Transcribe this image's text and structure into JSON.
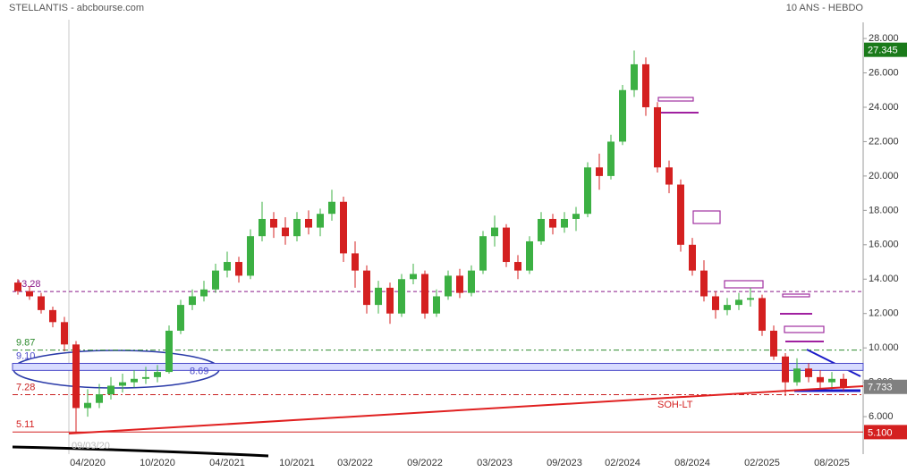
{
  "chart_data": {
    "type": "candlestick",
    "title": "STELLANTIS - abcbourse.com",
    "subtitle": "10 ANS - HEBDO",
    "x": [
      "10/2019",
      "11/2019",
      "12/2019",
      "01/2020",
      "02/2020",
      "03/2020",
      "04/2020",
      "05/2020",
      "06/2020",
      "07/2020",
      "08/2020",
      "09/2020",
      "10/2020",
      "11/2020",
      "12/2020",
      "01/2021",
      "02/2021",
      "03/2021",
      "04/2021",
      "05/2021",
      "06/2021",
      "07/2021",
      "08/2021",
      "09/2021",
      "10/2021",
      "11/2021",
      "12/2021",
      "01/2022",
      "02/2022",
      "03/2022",
      "04/2022",
      "05/2022",
      "06/2022",
      "07/2022",
      "08/2022",
      "09/2022",
      "10/2022",
      "11/2022",
      "12/2022",
      "01/2023",
      "02/2023",
      "03/2023",
      "04/2023",
      "05/2023",
      "06/2023",
      "07/2023",
      "08/2023",
      "09/2023",
      "10/2023",
      "11/2023",
      "12/2023",
      "01/2024",
      "02/2024",
      "03/2024",
      "04/2024",
      "05/2024",
      "06/2024",
      "07/2024",
      "08/2024",
      "09/2024",
      "10/2024",
      "11/2024",
      "12/2024",
      "01/2025",
      "02/2025",
      "03/2025",
      "04/2025",
      "05/2025",
      "06/2025",
      "07/2025",
      "08/2025",
      "09/2025"
    ],
    "open": [
      13.8,
      13.3,
      13.0,
      12.2,
      11.5,
      10.2,
      6.5,
      6.8,
      7.3,
      7.8,
      8.0,
      8.2,
      8.3,
      8.6,
      11.0,
      12.5,
      13.0,
      13.4,
      14.5,
      15.0,
      14.2,
      16.5,
      17.5,
      17.0,
      16.5,
      17.5,
      17.0,
      17.8,
      18.5,
      15.5,
      14.5,
      12.5,
      13.5,
      12.0,
      14.0,
      14.3,
      12.0,
      13.0,
      14.2,
      13.2,
      14.5,
      16.5,
      17.0,
      15.0,
      14.5,
      16.2,
      17.5,
      17.0,
      17.5,
      17.8,
      20.5,
      20.0,
      22.0,
      25.0,
      26.5,
      24.0,
      20.5,
      19.5,
      16.0,
      14.5,
      13.0,
      12.2,
      12.5,
      12.8,
      12.9,
      11.0,
      9.5,
      8.0,
      8.8,
      8.3,
      8.0,
      8.2
    ],
    "high": [
      14.0,
      13.6,
      13.2,
      12.4,
      11.8,
      10.4,
      7.6,
      7.9,
      8.3,
      8.5,
      8.7,
      8.9,
      9.0,
      11.3,
      12.8,
      13.4,
      13.9,
      14.9,
      15.6,
      15.3,
      16.9,
      18.5,
      17.9,
      17.6,
      17.9,
      18.0,
      18.1,
      19.2,
      18.8,
      16.2,
      14.8,
      13.9,
      13.8,
      14.3,
      14.9,
      14.5,
      13.4,
      14.5,
      14.6,
      14.8,
      16.8,
      17.7,
      17.2,
      15.4,
      16.5,
      17.9,
      17.8,
      17.9,
      18.2,
      20.8,
      21.3,
      22.4,
      25.3,
      27.3,
      26.9,
      24.3,
      20.9,
      19.8,
      16.4,
      15.1,
      13.3,
      12.9,
      13.2,
      13.5,
      13.1,
      11.3,
      9.7,
      9.4,
      9.1,
      8.7,
      8.6,
      8.5
    ],
    "low": [
      13.1,
      12.8,
      12.0,
      11.2,
      9.8,
      5.1,
      6.0,
      6.5,
      7.0,
      7.4,
      7.7,
      7.9,
      8.0,
      8.5,
      10.8,
      12.2,
      12.7,
      13.2,
      14.1,
      13.8,
      14.0,
      16.2,
      16.4,
      16.0,
      16.2,
      16.6,
      16.5,
      17.4,
      15.0,
      13.5,
      12.0,
      12.0,
      11.4,
      11.8,
      13.7,
      11.7,
      11.8,
      12.8,
      12.9,
      13.0,
      14.3,
      15.9,
      14.7,
      14.0,
      14.3,
      16.0,
      16.6,
      16.7,
      16.8,
      17.6,
      19.2,
      19.8,
      21.8,
      24.6,
      23.5,
      20.2,
      19.0,
      15.6,
      14.2,
      12.7,
      11.7,
      11.9,
      12.2,
      12.4,
      10.7,
      9.3,
      7.2,
      7.8,
      8.0,
      7.6,
      7.6,
      7.5
    ],
    "close": [
      13.3,
      13.0,
      12.2,
      11.5,
      10.2,
      6.5,
      6.8,
      7.3,
      7.8,
      8.0,
      8.2,
      8.3,
      8.6,
      11.0,
      12.5,
      13.0,
      13.4,
      14.5,
      15.0,
      14.2,
      16.5,
      17.5,
      17.0,
      16.5,
      17.5,
      17.0,
      17.8,
      18.5,
      15.5,
      14.5,
      12.5,
      13.5,
      12.0,
      14.0,
      14.3,
      12.0,
      13.0,
      14.2,
      13.2,
      14.5,
      16.5,
      17.0,
      15.0,
      14.5,
      16.2,
      17.5,
      17.0,
      17.5,
      17.8,
      20.5,
      20.0,
      22.0,
      25.0,
      26.5,
      24.0,
      20.5,
      19.5,
      16.0,
      14.5,
      13.0,
      12.2,
      12.5,
      12.8,
      12.9,
      11.0,
      9.5,
      8.0,
      8.8,
      8.3,
      8.0,
      8.2,
      7.733
    ],
    "up_color": "#3cb043",
    "down_color": "#d42020",
    "xticks": [
      "04/2020",
      "10/2020",
      "04/2021",
      "10/2021",
      "03/2022",
      "09/2022",
      "03/2023",
      "09/2023",
      "02/2024",
      "08/2024",
      "02/2025",
      "08/2025"
    ],
    "ylim": [
      3.82,
      30.24
    ],
    "yticks": [
      {
        "value": 6,
        "label": "6.000"
      },
      {
        "value": 8,
        "label": "8.000"
      },
      {
        "value": 10,
        "label": "10.000"
      },
      {
        "value": 12,
        "label": "12.000"
      },
      {
        "value": 14,
        "label": "14.000"
      },
      {
        "value": 16,
        "label": "16.000"
      },
      {
        "value": 18,
        "label": "18.000"
      },
      {
        "value": 20,
        "label": "20.000"
      },
      {
        "value": 22,
        "label": "22.000"
      },
      {
        "value": 24,
        "label": "24.000"
      },
      {
        "value": 26,
        "label": "26.000"
      },
      {
        "value": 28,
        "label": "28.000"
      }
    ],
    "levels": [
      {
        "value": 13.28,
        "color": "#8b1a8b",
        "dash": "4 3"
      },
      {
        "value": 9.87,
        "color": "#2e8b2e",
        "dash": "6 3 2 3"
      },
      {
        "value": {
          "value": 9.1,
          "label": "9.10"
        },
        "color": "#4a4ac8",
        "dash": "none"
      },
      {
        "value": 8.69,
        "color": "#4a4ac8",
        "dash": "none"
      },
      {
        "value": 7.28,
        "color": "#c82020",
        "dash": "6 3 2 3"
      },
      {
        "value": 5.11,
        "color": "#d42020",
        "dash": "none"
      }
    ],
    "badges": [
      {
        "value": 27.345,
        "color": "#1a7a1a"
      },
      {
        "value": 7.733,
        "color": "#808080"
      },
      {
        "value": {
          "value": 5.1,
          "label": "5.100"
        },
        "color": "#d42020"
      }
    ],
    "annotations": [
      "SOH-LT",
      "09/03/20"
    ]
  }
}
